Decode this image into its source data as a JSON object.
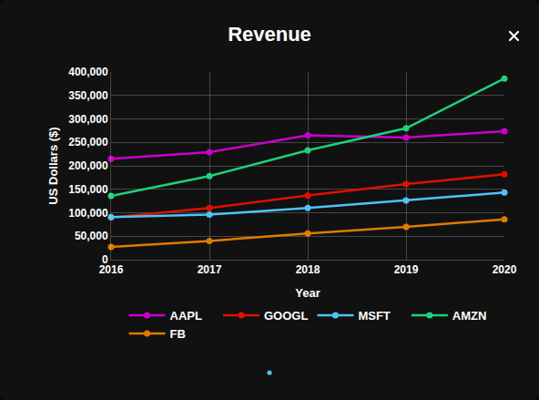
{
  "chart_data": {
    "type": "line",
    "title": "Revenue",
    "x_label": "Year",
    "y_label": "US Dollars ($)",
    "x": [
      2016,
      2017,
      2018,
      2019,
      2020
    ],
    "xlim": [
      2016,
      2020
    ],
    "xticks": [
      2016,
      2017,
      2018,
      2019,
      2020
    ],
    "ylim": [
      0,
      400000
    ],
    "yticks": [
      0,
      {
        "value": 50000,
        "label": "50,000"
      },
      {
        "value": 100000,
        "label": "100,000"
      },
      {
        "value": 150000,
        "label": "150,000"
      },
      {
        "value": 200000,
        "label": "200,000"
      },
      {
        "value": 250000,
        "label": "250,000"
      },
      {
        "value": 300000,
        "label": "300,000"
      },
      {
        "value": 350000,
        "label": "350,000"
      },
      {
        "value": 400000,
        "label": "400,000"
      }
    ],
    "grid": true,
    "legend": "bottom",
    "marker": "circle",
    "line_style": "solid",
    "series": [
      {
        "name": "AAPL",
        "color": "#cc00cc",
        "values": [
          215000,
          229000,
          265000,
          260000,
          274000
        ]
      },
      {
        "name": "GOOGL",
        "color": "#dd1100",
        "values": [
          90000,
          110000,
          137000,
          161000,
          182000
        ]
      },
      {
        "name": "MSFT",
        "color": "#4fc3f7",
        "values": [
          91000,
          96000,
          110000,
          126000,
          143000
        ]
      },
      {
        "name": "AMZN",
        "color": "#1ed27a",
        "values": [
          136000,
          178000,
          233000,
          280000,
          386000
        ]
      },
      {
        "name": "FB",
        "color": "#e07b00",
        "values": [
          27000,
          40000,
          56000,
          70000,
          86000
        ]
      }
    ]
  }
}
